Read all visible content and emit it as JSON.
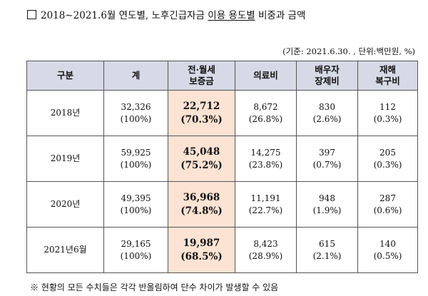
{
  "title": {
    "box_glyph": "□",
    "part1": "2018∼2021.6월 연도별, 노후긴급자금 ",
    "part2": "이용 용도별",
    "part3": " 비중과 금액"
  },
  "unit_note": "(기준: 2021.6.30. , 단위:백만원, %)",
  "table": {
    "headers": [
      {
        "line1": "구분",
        "line2": ""
      },
      {
        "line1": "계",
        "line2": ""
      },
      {
        "line1": "전·월세",
        "line2": "보증금"
      },
      {
        "line1": "의료비",
        "line2": ""
      },
      {
        "line1": "배우자",
        "line2": "장제비"
      },
      {
        "line1": "재해",
        "line2": "복구비"
      }
    ],
    "rows": [
      {
        "label": "2018년",
        "total": {
          "amount": "32,326",
          "pct": "(100%)"
        },
        "deposit": {
          "amount": "22,712",
          "pct": "(70.3%)"
        },
        "medical": {
          "amount": "8,672",
          "pct": "(26.8%)"
        },
        "funeral": {
          "amount": "830",
          "pct": "(2.6%)"
        },
        "disaster": {
          "amount": "112",
          "pct": "(0.3%)"
        }
      },
      {
        "label": "2019년",
        "total": {
          "amount": "59,925",
          "pct": "(100%)"
        },
        "deposit": {
          "amount": "45,048",
          "pct": "(75.2%)"
        },
        "medical": {
          "amount": "14,275",
          "pct": "(23.8%)"
        },
        "funeral": {
          "amount": "397",
          "pct": "(0.7%)"
        },
        "disaster": {
          "amount": "205",
          "pct": "(0.3%)"
        }
      },
      {
        "label": "2020년",
        "total": {
          "amount": "49,395",
          "pct": "(100%)"
        },
        "deposit": {
          "amount": "36,968",
          "pct": "(74.8%)"
        },
        "medical": {
          "amount": "11,191",
          "pct": "(22.7%)"
        },
        "funeral": {
          "amount": "948",
          "pct": "(1.9%)"
        },
        "disaster": {
          "amount": "287",
          "pct": "(0.6%)"
        }
      },
      {
        "label": "2021년6월",
        "total": {
          "amount": "29,165",
          "pct": "(100%)"
        },
        "deposit": {
          "amount": "19,987",
          "pct": "(68.5%)"
        },
        "medical": {
          "amount": "8,423",
          "pct": "(28.9%)"
        },
        "funeral": {
          "amount": "615",
          "pct": "(2.1%)"
        },
        "disaster": {
          "amount": "140",
          "pct": "(0.5%)"
        }
      }
    ]
  },
  "footnote": "※ 현황의 모든 수치들은 각각 반올림하여 단수 차이가 발생할 수 있음",
  "colors": {
    "header_bg": "#d7d9e6",
    "highlight_bg": "#fce3d3",
    "border": "#555555"
  }
}
